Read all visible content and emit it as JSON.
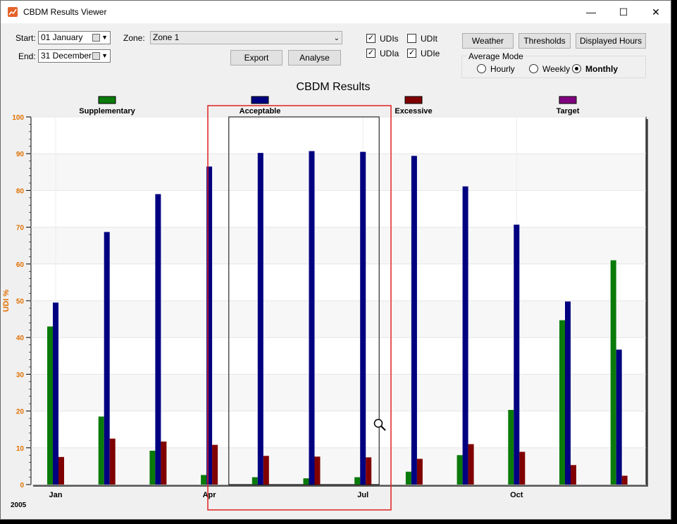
{
  "window": {
    "title": "CBDM Results Viewer",
    "minimize_glyph": "—",
    "maximize_glyph": "☐",
    "close_glyph": "✕"
  },
  "controls": {
    "start_label": "Start:",
    "start_value": "01   January",
    "end_label": "End:",
    "end_value": "31 December",
    "zone_label": "Zone:",
    "zone_value": "Zone 1",
    "export_label": "Export",
    "analyse_label": "Analyse",
    "checkboxes": [
      {
        "label": "UDIs",
        "checked": true
      },
      {
        "label": "UDIt",
        "checked": false
      },
      {
        "label": "UDIa",
        "checked": true
      },
      {
        "label": "UDIe",
        "checked": true
      }
    ],
    "weather_label": "Weather",
    "thresholds_label": "Thresholds",
    "displayed_hours_label": "Displayed Hours",
    "average_mode_label": "Average Mode",
    "modes": [
      {
        "label": "Hourly",
        "selected": false
      },
      {
        "label": "Weekly",
        "selected": false
      },
      {
        "label": "Monthly",
        "selected": true
      }
    ]
  },
  "chart_data": {
    "type": "bar",
    "title": "CBDM Results",
    "ylabel": "UDI %",
    "ylim": [
      0,
      100
    ],
    "yticks": [
      0,
      10,
      20,
      30,
      40,
      50,
      60,
      70,
      80,
      90,
      100
    ],
    "year_label": "2005",
    "x_tick_labels": [
      {
        "label": "Jan",
        "month_index": 0
      },
      {
        "label": "Apr",
        "month_index": 3
      },
      {
        "label": "Jul",
        "month_index": 6
      },
      {
        "label": "Oct",
        "month_index": 9
      }
    ],
    "legend_position": "top",
    "series": [
      {
        "name": "Supplementary",
        "color": "#0a7a0a",
        "values": [
          43,
          18.5,
          9.2,
          2.6,
          2.0,
          1.7,
          2.0,
          3.5,
          8.0,
          20.3,
          44.7,
          61.0
        ]
      },
      {
        "name": "Acceptable",
        "color": "#000080",
        "values": [
          49.5,
          68.7,
          79.0,
          86.5,
          90.2,
          90.7,
          90.5,
          89.4,
          81.1,
          70.7,
          49.8,
          36.7
        ]
      },
      {
        "name": "Excessive",
        "color": "#800000",
        "values": [
          7.5,
          12.5,
          11.7,
          10.8,
          7.8,
          7.6,
          7.4,
          7.0,
          11.0,
          8.9,
          5.3,
          2.4
        ]
      },
      {
        "name": "Target",
        "color": "#800080",
        "values": []
      }
    ],
    "zoom_selection_months": [
      4,
      6
    ]
  },
  "colors": {
    "axis_label": "#e07000",
    "highlight": "#e02020"
  }
}
